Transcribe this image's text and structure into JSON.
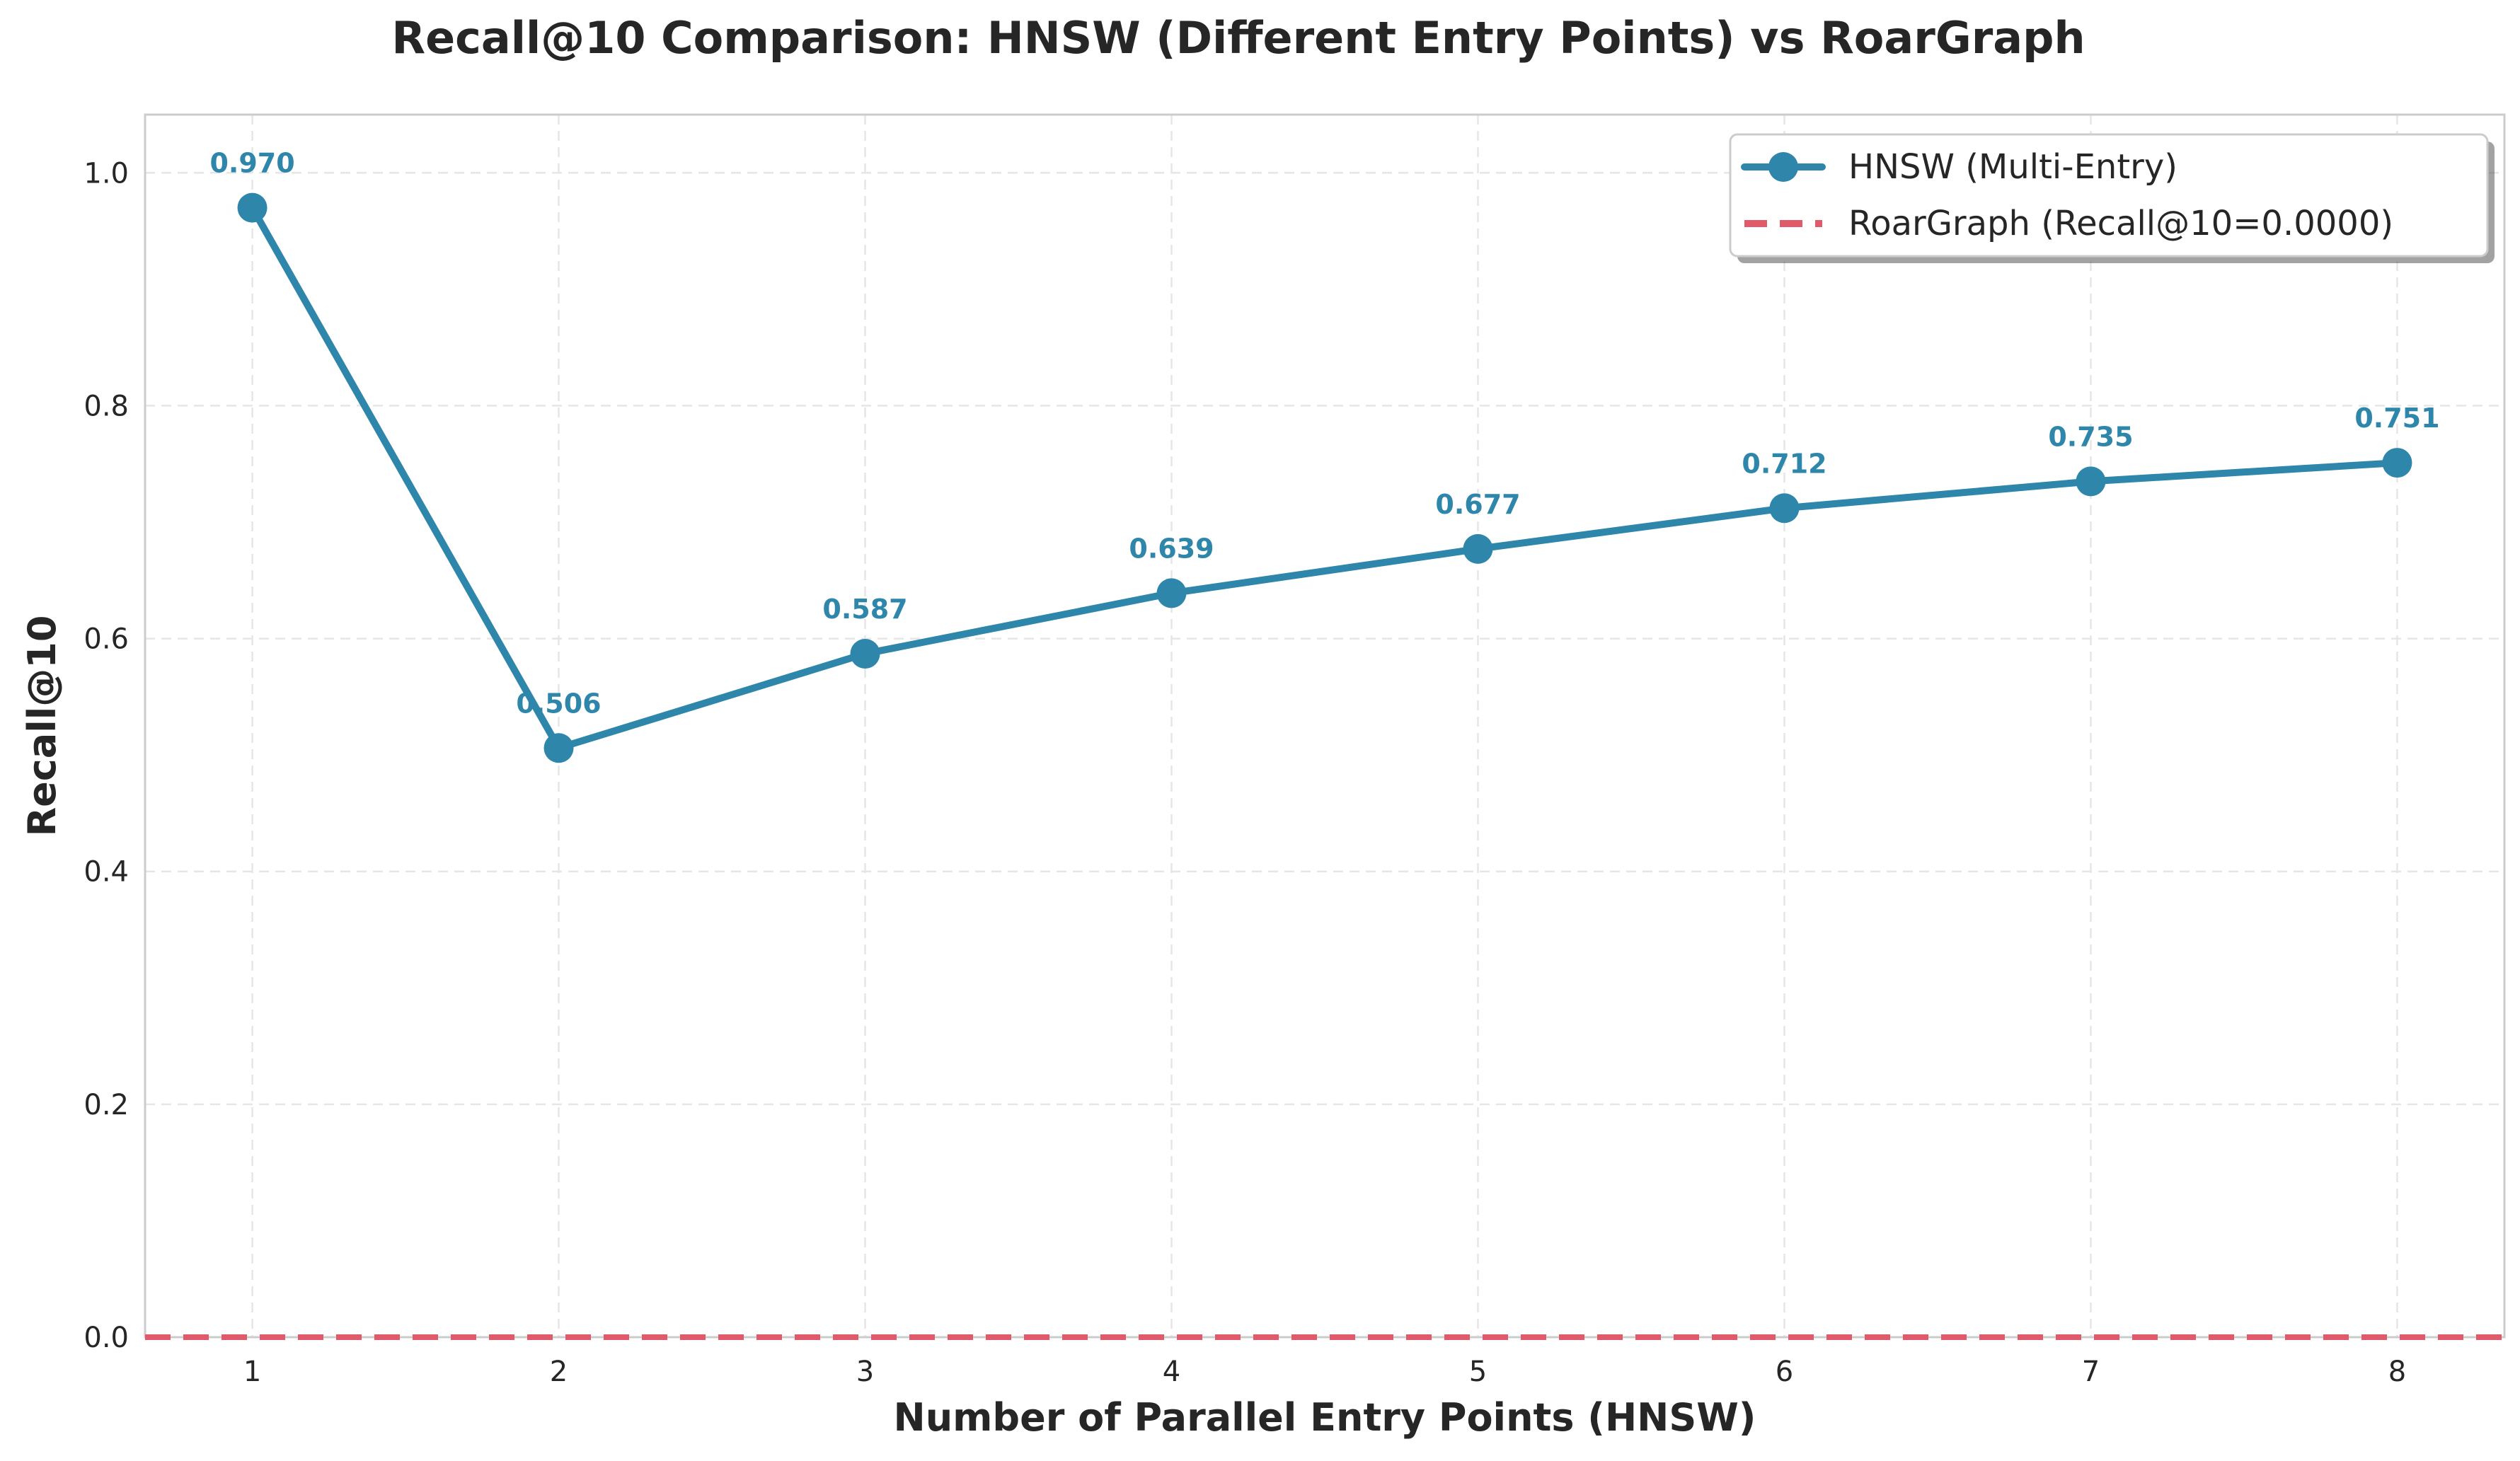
{
  "chart_data": {
    "type": "line",
    "title": "Recall@10 Comparison: HNSW (Different Entry Points) vs RoarGraph",
    "xlabel": "Number of Parallel Entry Points (HNSW)",
    "ylabel": "Recall@10",
    "x": [
      1,
      2,
      3,
      4,
      5,
      6,
      7,
      8
    ],
    "xlim": [
      0.65,
      8.35
    ],
    "ylim": [
      0.0,
      1.05
    ],
    "xticks": [
      "1",
      "2",
      "3",
      "4",
      "5",
      "6",
      "7",
      "8"
    ],
    "yticks": [
      "0.0",
      "0.2",
      "0.4",
      "0.6",
      "0.8",
      "1.0"
    ],
    "grid": true,
    "legend_position": "top-right",
    "series": [
      {
        "name": "HNSW (Multi-Entry)",
        "style": "solid-line-with-circle-markers",
        "color": "#2e86ab",
        "values": [
          0.97,
          0.506,
          0.587,
          0.639,
          0.677,
          0.712,
          0.735,
          0.751
        ],
        "labels": [
          "0.970",
          "0.506",
          "0.587",
          "0.639",
          "0.677",
          "0.712",
          "0.735",
          "0.751"
        ]
      },
      {
        "name": "RoarGraph (Recall@10=0.0000)",
        "style": "dashed-horizontal-line",
        "color": "#e05a6a",
        "value": 0.0
      }
    ]
  }
}
